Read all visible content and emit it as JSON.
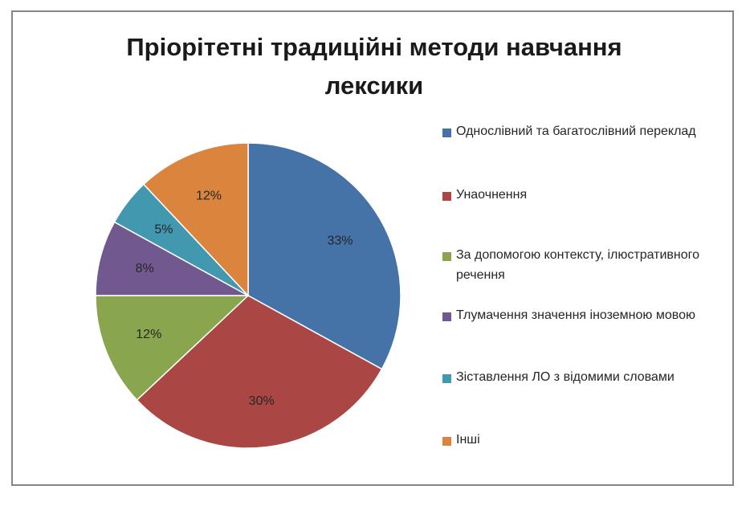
{
  "chart_data": {
    "type": "pie",
    "title": "Пріорітетні традиційні методи навчання лексики",
    "legend_position": "right",
    "slices": [
      {
        "label": "Однослівний та багатослівний переклад",
        "value": 33,
        "value_label": "33%",
        "color": "#4572a7"
      },
      {
        "label": "Унаочнення",
        "value": 30,
        "value_label": "30%",
        "color": "#aa4643"
      },
      {
        "label": "За допомогою контексту, ілюстративного речення",
        "value": 12,
        "value_label": "12%",
        "color": "#89a54e"
      },
      {
        "label": "Тлумачення значення іноземною мовою",
        "value": 8,
        "value_label": "8%",
        "color": "#71588f"
      },
      {
        "label": "Зіставлення ЛО з відомими словами",
        "value": 5,
        "value_label": "5%",
        "color": "#4198af"
      },
      {
        "label": "Інші",
        "value": 12,
        "value_label": "12%",
        "color": "#db843d"
      }
    ]
  }
}
